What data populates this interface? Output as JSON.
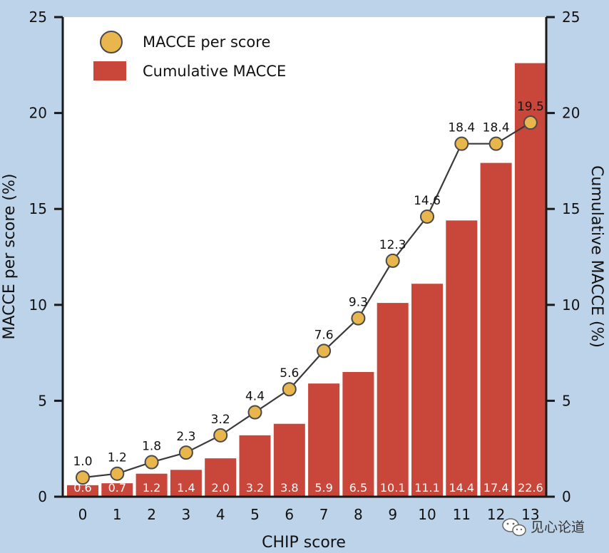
{
  "chart_data": {
    "type": "bar+line",
    "categories": [
      "0",
      "1",
      "2",
      "3",
      "4",
      "5",
      "6",
      "7",
      "8",
      "9",
      "10",
      "11",
      "12",
      "13"
    ],
    "series": [
      {
        "name": "MACCE per score",
        "kind": "line",
        "axis": "left",
        "values": [
          1.0,
          1.2,
          1.8,
          2.3,
          3.2,
          4.4,
          5.6,
          7.6,
          9.3,
          12.3,
          14.6,
          18.4,
          18.4,
          19.5
        ],
        "labels": [
          "1.0",
          "1.2",
          "1.8",
          "2.3",
          "3.2",
          "4.4",
          "5.6",
          "7.6",
          "9.3",
          "12.3",
          "14.6",
          "18.4",
          "18.4",
          "19.5"
        ]
      },
      {
        "name": "Cumulative MACCE",
        "kind": "bar",
        "axis": "right",
        "values": [
          0.6,
          0.7,
          1.2,
          1.4,
          2.0,
          3.2,
          3.8,
          5.9,
          6.5,
          10.1,
          11.1,
          14.4,
          17.4,
          22.6
        ],
        "labels": [
          "0.6",
          "0.7",
          "1.2",
          "1.4",
          "2.0",
          "3.2",
          "3.8",
          "5.9",
          "6.5",
          "10.1",
          "11.1",
          "14.4",
          "17.4",
          "22.6"
        ]
      }
    ],
    "xlabel": "CHIP score",
    "ylabel_left": "MACCE per score (%)",
    "ylabel_right": "Cumulative MACCE (%)",
    "ylim": [
      0,
      25
    ],
    "yticks": [
      "0",
      "5",
      "10",
      "15",
      "20",
      "25"
    ],
    "legend_position": "top-left",
    "grid": false,
    "colors": {
      "bar": "#c8473a",
      "marker_fill": "#e8b64c",
      "marker_stroke": "#4a4a4a",
      "line": "#3a3a3a",
      "plot_bg": "#ffffff",
      "figure_bg": "#bdd3ea"
    }
  },
  "watermark": {
    "icon": "wechat-icon",
    "text": "见心论道"
  }
}
